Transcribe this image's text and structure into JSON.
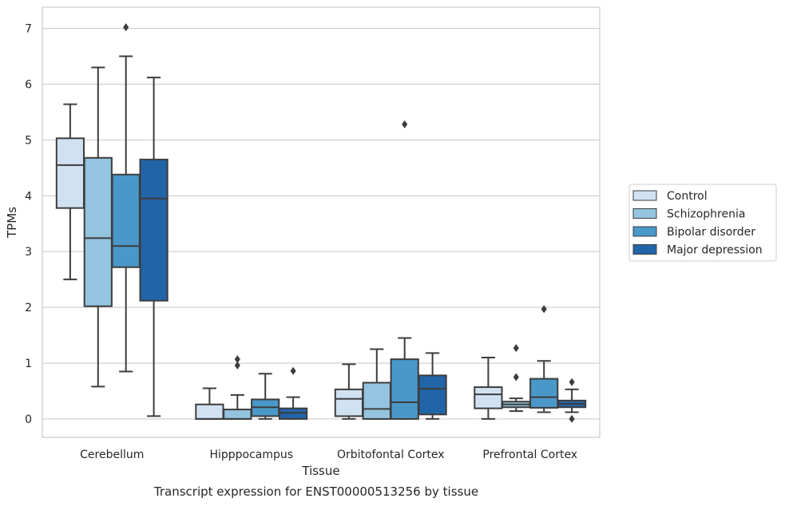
{
  "chart_data": {
    "type": "box",
    "caption": "Transcript expression for ENST00000513256 by tissue",
    "xlabel": "Tissue",
    "ylabel": "TPMs",
    "ylim": [
      -0.33,
      7.38
    ],
    "yticks": [
      0,
      1,
      2,
      3,
      4,
      5,
      6,
      7
    ],
    "grid": true,
    "legend_position": "right",
    "categories": [
      "Cerebellum",
      "Hipppocampus",
      "Orbitofontal Cortex",
      "Prefrontal Cortex"
    ],
    "series": [
      {
        "name": "Control",
        "color": "#d0e1f2",
        "boxes": [
          {
            "whislo": 2.5,
            "q1": 3.78,
            "med": 4.55,
            "q3": 5.03,
            "whishi": 5.64,
            "fliers": []
          },
          {
            "whislo": 0.0,
            "q1": 0.0,
            "med": 0.0,
            "q3": 0.26,
            "whishi": 0.55,
            "fliers": []
          },
          {
            "whislo": 0.0,
            "q1": 0.05,
            "med": 0.36,
            "q3": 0.53,
            "whishi": 0.98,
            "fliers": []
          },
          {
            "whislo": 0.0,
            "q1": 0.19,
            "med": 0.44,
            "q3": 0.57,
            "whishi": 1.1,
            "fliers": []
          }
        ]
      },
      {
        "name": "Schizophrenia",
        "color": "#94c4df",
        "boxes": [
          {
            "whislo": 0.58,
            "q1": 2.02,
            "med": 3.24,
            "q3": 4.68,
            "whishi": 6.3,
            "fliers": []
          },
          {
            "whislo": 0.0,
            "q1": 0.0,
            "med": 0.0,
            "q3": 0.17,
            "whishi": 0.43,
            "fliers": [
              0.96,
              1.07
            ]
          },
          {
            "whislo": 0.0,
            "q1": 0.0,
            "med": 0.18,
            "q3": 0.65,
            "whishi": 1.25,
            "fliers": []
          },
          {
            "whislo": 0.14,
            "q1": 0.21,
            "med": 0.26,
            "q3": 0.31,
            "whishi": 0.37,
            "fliers": [
              0.75,
              1.27
            ]
          }
        ]
      },
      {
        "name": "Bipolar disorder",
        "color": "#4a98c9",
        "boxes": [
          {
            "whislo": 0.85,
            "q1": 2.72,
            "med": 3.1,
            "q3": 4.38,
            "whishi": 6.5,
            "fliers": [
              7.02
            ]
          },
          {
            "whislo": 0.0,
            "q1": 0.05,
            "med": 0.21,
            "q3": 0.35,
            "whishi": 0.81,
            "fliers": []
          },
          {
            "whislo": 0.0,
            "q1": 0.0,
            "med": 0.3,
            "q3": 1.07,
            "whishi": 1.45,
            "fliers": [
              5.28
            ]
          },
          {
            "whislo": 0.12,
            "q1": 0.2,
            "med": 0.39,
            "q3": 0.72,
            "whishi": 1.04,
            "fliers": [
              1.97
            ]
          }
        ]
      },
      {
        "name": "Major depression",
        "color": "#2264a8",
        "boxes": [
          {
            "whislo": 0.05,
            "q1": 2.12,
            "med": 3.95,
            "q3": 4.65,
            "whishi": 6.12,
            "fliers": []
          },
          {
            "whislo": 0.0,
            "q1": 0.0,
            "med": 0.11,
            "q3": 0.19,
            "whishi": 0.39,
            "fliers": [
              0.86
            ]
          },
          {
            "whislo": 0.0,
            "q1": 0.08,
            "med": 0.54,
            "q3": 0.78,
            "whishi": 1.18,
            "fliers": []
          },
          {
            "whislo": 0.12,
            "q1": 0.21,
            "med": 0.27,
            "q3": 0.33,
            "whishi": 0.53,
            "fliers": [
              0.66,
              0.0
            ]
          }
        ]
      }
    ]
  }
}
